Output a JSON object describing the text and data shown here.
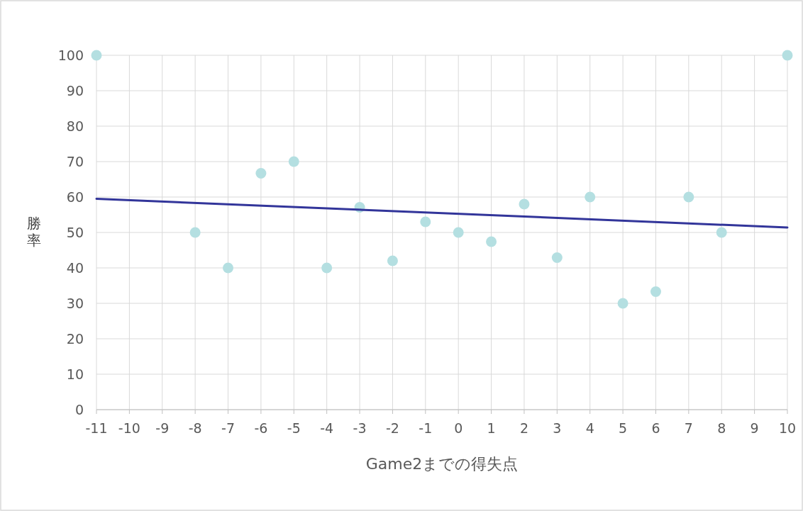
{
  "chart_data": {
    "type": "scatter",
    "xlabel": "Game2までの得失点",
    "ylabel": "勝率",
    "xlim": [
      -11,
      10
    ],
    "ylim": [
      0,
      100
    ],
    "xticks": [
      -11,
      -10,
      -9,
      -8,
      -7,
      -6,
      -5,
      -4,
      -3,
      -2,
      -1,
      0,
      1,
      2,
      3,
      4,
      5,
      6,
      7,
      8,
      9,
      10
    ],
    "yticks": [
      0,
      10,
      20,
      30,
      40,
      50,
      60,
      70,
      80,
      90,
      100
    ],
    "grid": true,
    "series": [
      {
        "marker": "circle",
        "color": "#b4dfe1",
        "x": [
          -11,
          -8,
          -7,
          -6,
          -5,
          -4,
          -3,
          -2,
          -1,
          0,
          1,
          2,
          3,
          4,
          5,
          6,
          7,
          8,
          10
        ],
        "values": [
          100,
          50,
          40,
          66.7,
          70,
          40,
          57.1,
          42,
          53,
          50,
          47.4,
          58,
          42.9,
          60,
          30,
          33.3,
          60,
          50,
          100
        ]
      },
      {
        "type": "line",
        "color": "#32359a",
        "x": [
          -11,
          10
        ],
        "values": [
          59.5,
          51.4
        ]
      }
    ]
  }
}
